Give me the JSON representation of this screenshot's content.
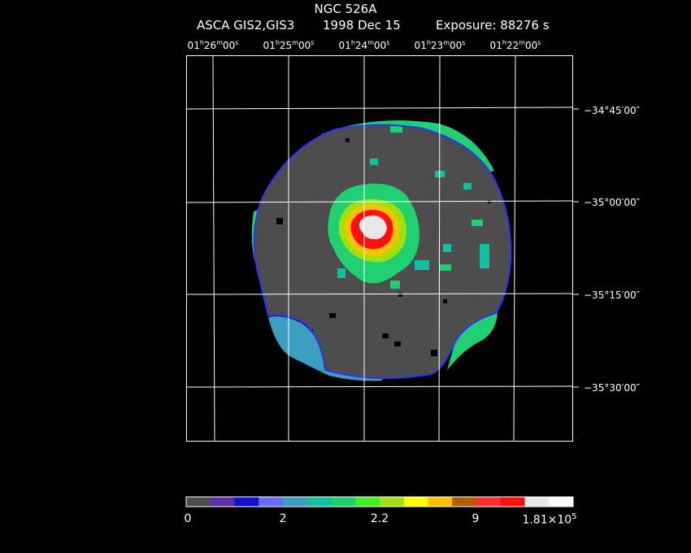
{
  "header": {
    "title": "NGC 526A",
    "instrument": "ASCA GIS2,GIS3",
    "date": "1998 Dec 15",
    "exposure": "Exposure: 88276 s"
  },
  "ra_ticks": [
    {
      "h": "01",
      "m": "26",
      "s": "00"
    },
    {
      "h": "01",
      "m": "25",
      "s": "00"
    },
    {
      "h": "01",
      "m": "24",
      "s": "00"
    },
    {
      "h": "01",
      "m": "23",
      "s": "00"
    },
    {
      "h": "01",
      "m": "22",
      "s": "00"
    }
  ],
  "dec_ticks": [
    "−34°45′00″",
    "−35°00′00″",
    "−35°15′00″",
    "−35°30′00″"
  ],
  "colorbar": {
    "colors": [
      "#4d4d4d",
      "#5a2fa8",
      "#1010d0",
      "#6a6aff",
      "#3b9ec0",
      "#10c0a0",
      "#20d070",
      "#40f020",
      "#a0e010",
      "#ffff00",
      "#ffc000",
      "#b06000",
      "#ff3030",
      "#ff1010",
      "#e8e8e8",
      "#ffffff"
    ],
    "labels": [
      "0",
      "2",
      "2.2",
      "9"
    ],
    "max_base": "1.81×10",
    "max_exp": "5"
  }
}
